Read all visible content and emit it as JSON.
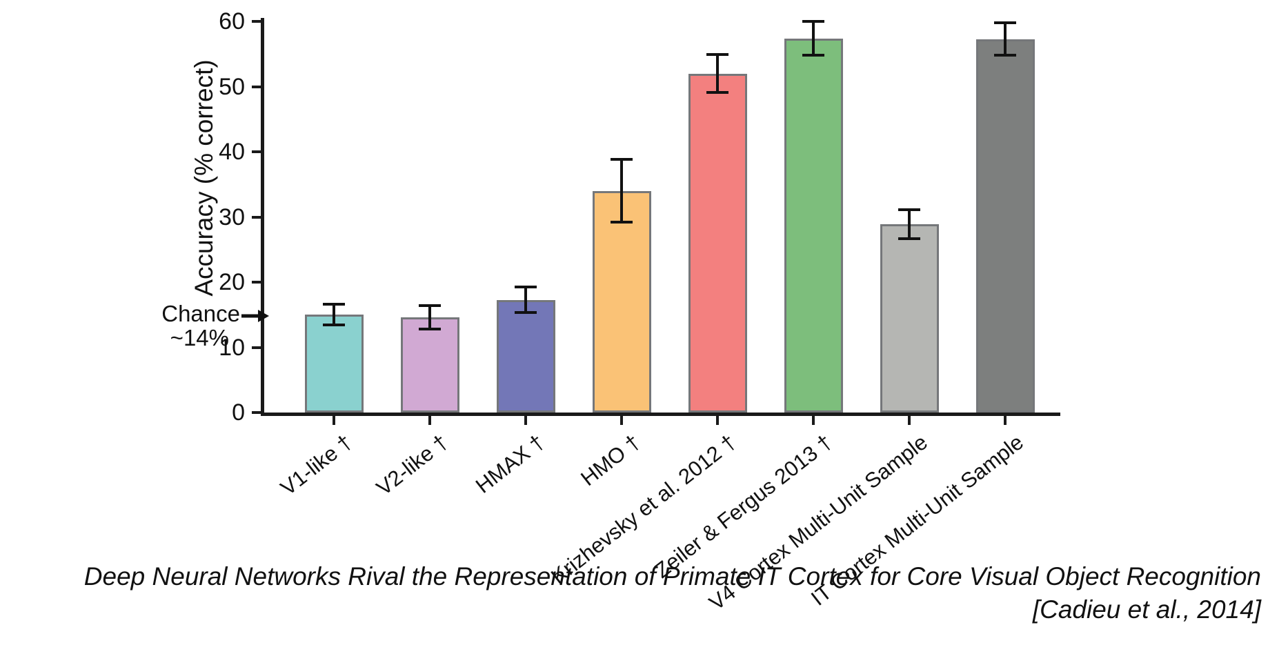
{
  "figure": {
    "caption_line1": "Deep Neural Networks Rival the Representation of Primate IT Cortex for Core Visual Object Recognition",
    "caption_line2": "[Cadieu et al., 2014]"
  },
  "chart_data": {
    "type": "bar",
    "title": "",
    "xlabel": "",
    "ylabel": "Accuracy (% correct)",
    "ylim": [
      0,
      60
    ],
    "yticks": [
      0,
      10,
      20,
      30,
      40,
      50,
      60
    ],
    "grid": false,
    "legend_position": "none",
    "categories": [
      "V1-like †",
      "V2-like †",
      "HMAX †",
      "HMO †",
      "Krizhevsky et al. 2012 †",
      "Zeiler & Fergus 2013 †",
      "V4 Cortex Multi-Unit Sample",
      "IT Cortex Multi-Unit Sample"
    ],
    "values": [
      15.0,
      14.6,
      17.3,
      34.0,
      52.0,
      57.4,
      28.9,
      57.3
    ],
    "errors": [
      1.6,
      1.8,
      2.0,
      4.8,
      2.9,
      2.6,
      2.2,
      2.5
    ],
    "colors": [
      "#8ad1cf",
      "#d1a9d3",
      "#7377b7",
      "#fac276",
      "#f3807f",
      "#7dbe7c",
      "#b5b6b3",
      "#7d7f7e"
    ],
    "bar_border_color": "#75777a",
    "axis_color": "#1a1a1a",
    "error_bar_color": "#111111",
    "annotation": {
      "text_line1": "Chance",
      "text_line2": "~14%",
      "arrow_value": 14.7
    }
  }
}
